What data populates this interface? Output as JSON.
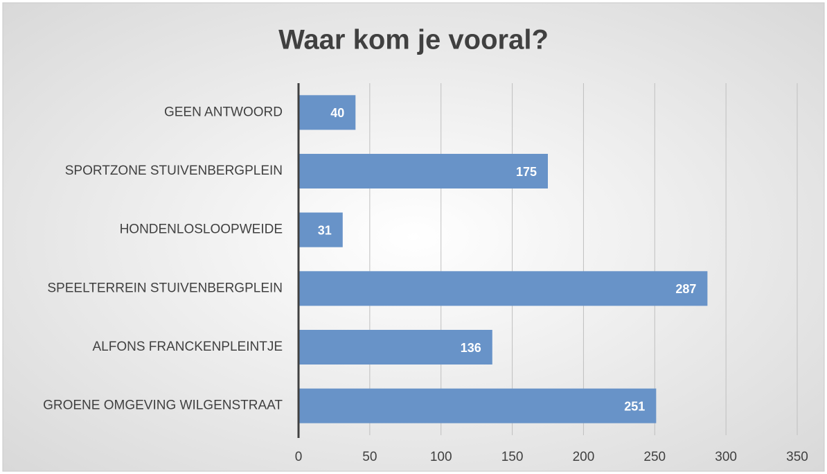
{
  "chart_data": {
    "type": "bar",
    "orientation": "horizontal",
    "title": "Waar kom je vooral?",
    "categories": [
      "GEEN ANTWOORD",
      "SPORTZONE STUIVENBERGPLEIN",
      "HONDENLOSLOOPWEIDE",
      "SPEELTERREIN STUIVENBERGPLEIN",
      "ALFONS FRANCKENPLEINTJE",
      "GROENE OMGEVING WILGENSTRAAT"
    ],
    "values": [
      40,
      175,
      31,
      287,
      136,
      251
    ],
    "color": "#6893c8",
    "xlim": [
      0,
      350
    ],
    "xticks": [
      0,
      50,
      100,
      150,
      200,
      250,
      300,
      350
    ],
    "grid": true
  }
}
